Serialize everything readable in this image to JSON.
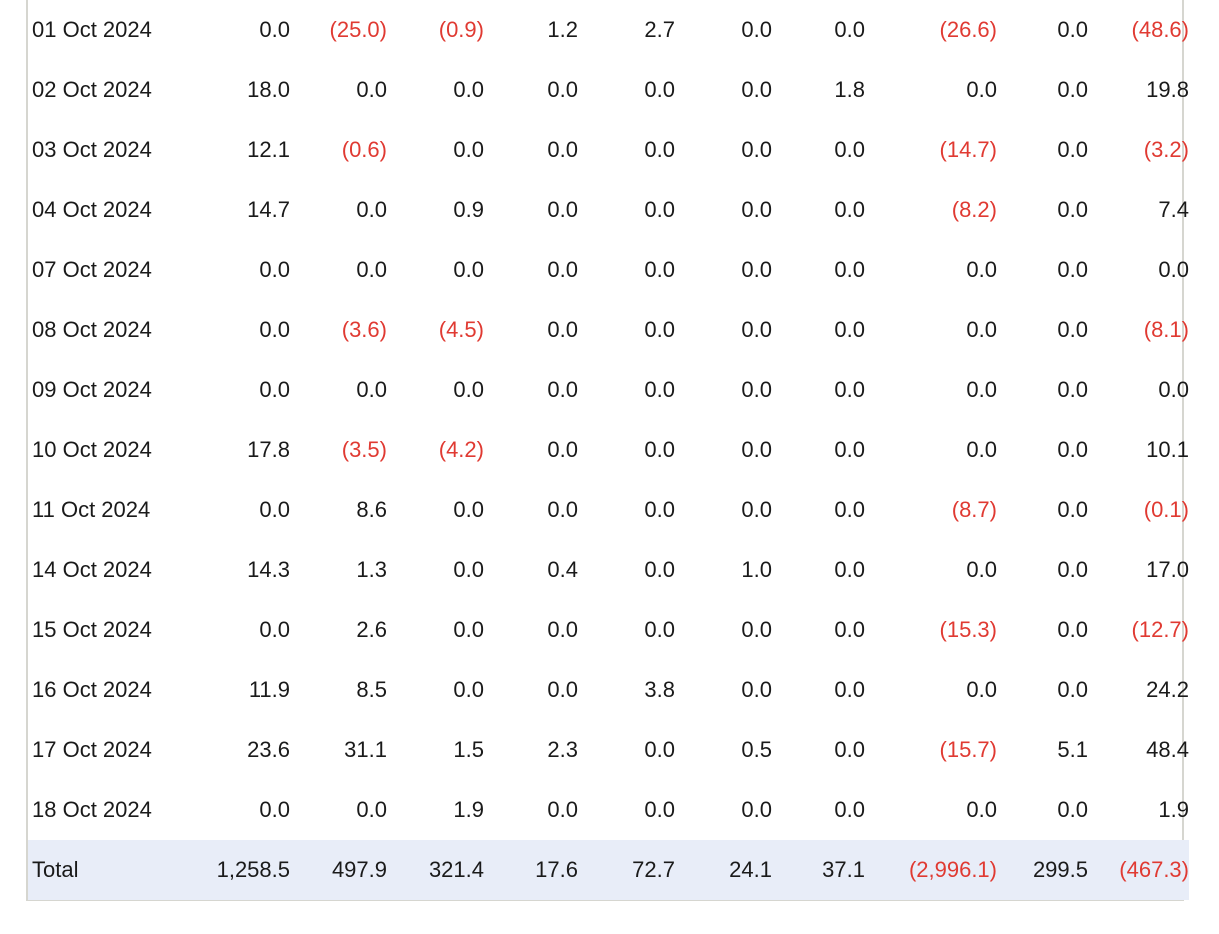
{
  "table": {
    "rows": [
      {
        "date": "01 Oct 2024",
        "values": [
          "0.0",
          "(25.0)",
          "(0.9)",
          "1.2",
          "2.7",
          "0.0",
          "0.0",
          "(26.6)",
          "0.0",
          "(48.6)"
        ]
      },
      {
        "date": "02 Oct 2024",
        "values": [
          "18.0",
          "0.0",
          "0.0",
          "0.0",
          "0.0",
          "0.0",
          "1.8",
          "0.0",
          "0.0",
          "19.8"
        ]
      },
      {
        "date": "03 Oct 2024",
        "values": [
          "12.1",
          "(0.6)",
          "0.0",
          "0.0",
          "0.0",
          "0.0",
          "0.0",
          "(14.7)",
          "0.0",
          "(3.2)"
        ]
      },
      {
        "date": "04 Oct 2024",
        "values": [
          "14.7",
          "0.0",
          "0.9",
          "0.0",
          "0.0",
          "0.0",
          "0.0",
          "(8.2)",
          "0.0",
          "7.4"
        ]
      },
      {
        "date": "07 Oct 2024",
        "values": [
          "0.0",
          "0.0",
          "0.0",
          "0.0",
          "0.0",
          "0.0",
          "0.0",
          "0.0",
          "0.0",
          "0.0"
        ]
      },
      {
        "date": "08 Oct 2024",
        "values": [
          "0.0",
          "(3.6)",
          "(4.5)",
          "0.0",
          "0.0",
          "0.0",
          "0.0",
          "0.0",
          "0.0",
          "(8.1)"
        ]
      },
      {
        "date": "09 Oct 2024",
        "values": [
          "0.0",
          "0.0",
          "0.0",
          "0.0",
          "0.0",
          "0.0",
          "0.0",
          "0.0",
          "0.0",
          "0.0"
        ]
      },
      {
        "date": "10 Oct 2024",
        "values": [
          "17.8",
          "(3.5)",
          "(4.2)",
          "0.0",
          "0.0",
          "0.0",
          "0.0",
          "0.0",
          "0.0",
          "10.1"
        ]
      },
      {
        "date": "11 Oct 2024",
        "values": [
          "0.0",
          "8.6",
          "0.0",
          "0.0",
          "0.0",
          "0.0",
          "0.0",
          "(8.7)",
          "0.0",
          "(0.1)"
        ]
      },
      {
        "date": "14 Oct 2024",
        "values": [
          "14.3",
          "1.3",
          "0.0",
          "0.4",
          "0.0",
          "1.0",
          "0.0",
          "0.0",
          "0.0",
          "17.0"
        ]
      },
      {
        "date": "15 Oct 2024",
        "values": [
          "0.0",
          "2.6",
          "0.0",
          "0.0",
          "0.0",
          "0.0",
          "0.0",
          "(15.3)",
          "0.0",
          "(12.7)"
        ]
      },
      {
        "date": "16 Oct 2024",
        "values": [
          "11.9",
          "8.5",
          "0.0",
          "0.0",
          "3.8",
          "0.0",
          "0.0",
          "0.0",
          "0.0",
          "24.2"
        ]
      },
      {
        "date": "17 Oct 2024",
        "values": [
          "23.6",
          "31.1",
          "1.5",
          "2.3",
          "0.0",
          "0.5",
          "0.0",
          "(15.7)",
          "5.1",
          "48.4"
        ]
      },
      {
        "date": "18 Oct 2024",
        "values": [
          "0.0",
          "0.0",
          "1.9",
          "0.0",
          "0.0",
          "0.0",
          "0.0",
          "0.0",
          "0.0",
          "1.9"
        ]
      }
    ],
    "total": {
      "label": "Total",
      "values": [
        "1,258.5",
        "497.9",
        "321.4",
        "17.6",
        "72.7",
        "24.1",
        "37.1",
        "(2,996.1)",
        "299.5",
        "(467.3)"
      ]
    },
    "colors": {
      "negative": "#e03a32",
      "total_background": "#e8edf8",
      "border": "#d6d6d0"
    }
  }
}
